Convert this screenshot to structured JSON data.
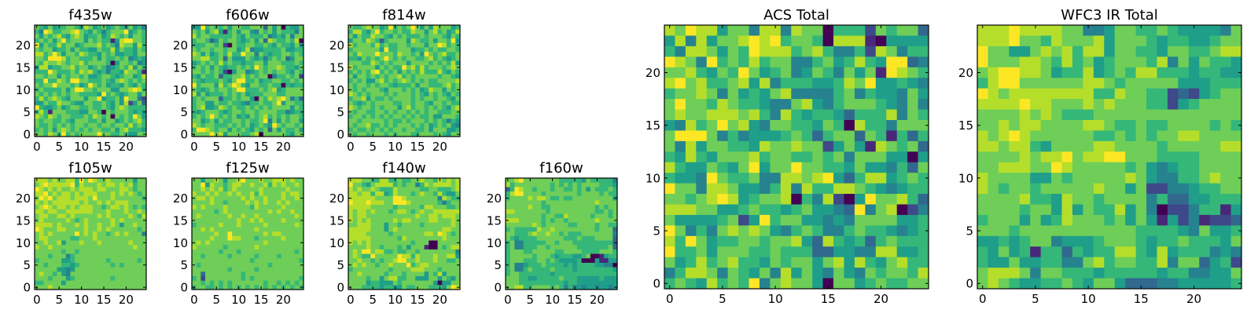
{
  "chart_data": [
    {
      "type": "heatmap",
      "title": "f435w",
      "colormap": "viridis",
      "xlim": [
        -0.5,
        24.5
      ],
      "ylim": [
        -0.5,
        24.5
      ],
      "xticks": [
        "0",
        "5",
        "10",
        "15",
        "20"
      ],
      "yticks": [
        "0",
        "5",
        "10",
        "15",
        "20"
      ],
      "rows_top_to_bottom_level0to9": [
        "7657566776587567567657564",
        "6498667789765764677795676",
        "7576786578756675687675776",
        "6767579677757676615899776",
        "9576686775677786764877586",
        "7677566757665576685766576",
        "8867975776876657675566577",
        "7769998677666757667674565",
        "7687787677867777605776745",
        "5885667786775676456768576",
        "6669766676878656466587761",
        "7767757677675567765677568",
        "6696687699776667657876767",
        "7677977767569767566576576",
        "6766667579977677755778986",
        "7676767677666659676567757",
        "6867876577757795667597742",
        "5576687765577667657582573",
        "9655675677667667657876666",
        "6861777666557760767776565",
        "8768767766676876707676975",
        "7677667657776675775676786",
        "7667676767767767767768676",
        "6767578767676776675786665",
        "7768769676777797766765577"
      ]
    },
    {
      "type": "heatmap",
      "title": "f606w",
      "colormap": "viridis",
      "xlim": [
        -0.5,
        24.5
      ],
      "ylim": [
        -0.5,
        24.5
      ],
      "xticks": [
        "0",
        "5",
        "10",
        "15",
        "20"
      ],
      "yticks": [
        "0",
        "5",
        "10",
        "15",
        "20"
      ],
      "rows_top_to_bottom_level0to9": [
        "5596766757766777375706557",
        "7675785167577547675766647",
        "8677666667657666745657477",
        "6776357677656757387667680",
        "6667767207667766765766575",
        "7677677677568455666675566",
        "8757567686697747656677676",
        "7788667375557656467673577",
        "5676768676656677577766676",
        "6767576566767697677876657",
        "7767676205774567676776576",
        "6576673667786767704667672",
        "7656667657996675667766767",
        "9677758679865776676606566",
        "7656767767996667678567777",
        "8575666767675666777667777",
        "6767773667677507687897463",
        "6775576676654667667957766",
        "6785568767667676767777576",
        "6567776567767767777664566",
        "6767976767565767867676776",
        "7756757667767667947576775",
        "8767766676767567659767767",
        "6998767757676576737576675",
        "7777978577766780777776577"
      ]
    },
    {
      "type": "heatmap",
      "title": "f814w",
      "colormap": "viridis",
      "xlim": [
        -0.5,
        24.5
      ],
      "ylim": [
        -0.5,
        24.5
      ],
      "xticks": [
        "0",
        "5",
        "10",
        "15",
        "20"
      ],
      "yticks": [
        "0",
        "5",
        "10",
        "15",
        "20"
      ],
      "rows_top_to_bottom_level0to9": [
        "7667877569676797575877756",
        "6886579677676687757867568",
        "7576687765767666767776576",
        "5776876367777587667577695",
        "8677768676677677757798676",
        "6777777596677756676766776",
        "7687779777687767597678667",
        "6657676797676776678676567",
        "7776687676777577776767685",
        "8677775767669786867776787",
        "6767689676757676866686576",
        "7577676767786767777767765",
        "6767557867678767676677778",
        "7677676776566675776667867",
        "7676777657776767568775767",
        "8767677767677767657676576",
        "6778576676777767677677657",
        "7656767777667767765776766",
        "8767767677757867767676578",
        "7677667767677676767766677",
        "6776767676776767667557776",
        "7767777767667677767676465",
        "7677866767677767675676754",
        "6766767676776776675777556",
        "7677677767677766777676577"
      ]
    },
    {
      "type": "heatmap",
      "title": "f105w",
      "colormap": "viridis",
      "xlim": [
        -0.5,
        24.5
      ],
      "ylim": [
        -0.5,
        24.5
      ],
      "xticks": [
        "0",
        "5",
        "10",
        "15",
        "20"
      ],
      "yticks": [
        "0",
        "5",
        "10",
        "15",
        "20"
      ],
      "rows_top_to_bottom_level0to9": [
        "8887877886979877877777577",
        "7898888896877787887878677",
        "9878787787888788777887677",
        "8897878878788877787878767",
        "7989788878887977787777776",
        "8787888888787787878887777",
        "7898788787888776788787676",
        "8878877888888777877787787",
        "7887788787777787877778768",
        "7877777876787777787877777",
        "8888787778787787787577877",
        "9877788777787787877777767",
        "7878777779787877678787774",
        "7887777766777877777777777",
        "7787785777877787777778777",
        "8778777777777777777777877",
        "7777776776777777777777777",
        "7776777467777777777777777",
        "6777775567777777677777767",
        "7767776656777777767677777",
        "7777755457777777777777777",
        "7877675477777777777777777",
        "7776777567777777767777777",
        "6677775777777777777777777",
        "7778777777777777777777777"
      ]
    },
    {
      "type": "heatmap",
      "title": "f125w",
      "colormap": "viridis",
      "xlim": [
        -0.5,
        24.5
      ],
      "ylim": [
        -0.5,
        24.5
      ],
      "xticks": [
        "0",
        "5",
        "10",
        "15",
        "20"
      ],
      "yticks": [
        "0",
        "5",
        "10",
        "15",
        "20"
      ],
      "rows_top_to_bottom_level0to9": [
        "7757787577897778778887877",
        "7795877678877877868787787",
        "7787878678777778777778777",
        "8778787787877868777787887",
        "7887877777787877877787787",
        "7777877677778787877878777",
        "8787777877777687777787777",
        "7777767877777777787877877",
        "7877777787787787777777787",
        "7777777777877878777787777",
        "6777778777877777877777787",
        "7787877777777787777777777",
        "7777787797777777878877777",
        "7777877798877767777787777",
        "7878777777777777877777777",
        "8777777677777787777777777",
        "7777776777677777777777767",
        "7767777767777767777677777",
        "7777777777777677777777776",
        "7677777777777777767777777",
        "7777777767777767777777777",
        "7737777777767777777777777",
        "6727777777767677777777776",
        "7767676767777777677676767",
        "6776676767676767676767676"
      ]
    },
    {
      "type": "heatmap",
      "title": "f140w",
      "colormap": "viridis",
      "xlim": [
        -0.5,
        24.5
      ],
      "ylim": [
        -0.5,
        24.5
      ],
      "xticks": [
        "0",
        "5",
        "10",
        "15",
        "20"
      ],
      "yticks": [
        "0",
        "5",
        "10",
        "15",
        "20"
      ],
      "rows_top_to_bottom_level0to9": [
        "8887766886676677877687878",
        "9776578888676774687888878",
        "8787787666877777667766678",
        "8878868856877767877686557",
        "8888887777998777777748766",
        "9888988877999877777764677",
        "8888877777677777688777667",
        "8788787776788767877888888",
        "8788777777777778778878887",
        "8787877777878877778877787",
        "7788877757767777677777787",
        "8888877757877777777778877",
        "8888777776777777788798767",
        "8888877777768777777778777",
        "8787877777777767770077777",
        "7777877677767577710076788",
        "7879978866766776777777774",
        "7876697777798868777877885",
        "7787767677899778777877667",
        "7878776778777967887777777",
        "6777777776777788877767777",
        "7787777767776777757685777",
        "7777677578866775557757657",
        "7777566555767777777505577",
        "7776666566557667776665798"
      ]
    },
    {
      "type": "heatmap",
      "title": "f160w",
      "colormap": "viridis",
      "xlim": [
        -0.5,
        24.5
      ],
      "ylim": [
        -0.5,
        24.5
      ],
      "xticks": [
        "0",
        "5",
        "10",
        "15",
        "20"
      ],
      "yticks": [
        "0",
        "5",
        "10",
        "15",
        "20"
      ],
      "rows_top_to_bottom_level0to9": [
        "7789777777776666657666664",
        "8677777777676767677776665",
        "3698776777677667675766676",
        "6899777767777777677776766",
        "6777787887667667777777775",
        "7777777767777777777787777",
        "7777787766777777777767677",
        "8877777776777777777766767",
        "7777777767766877777677767",
        "8887777767677677777787777",
        "7777778767777766777767766",
        "6766666877877777777767773",
        "7766678778776766677777774",
        "7656666777777666766677773",
        "6744666667767776666666663",
        "6744666776777777666666673",
        "6777667777766777766667776",
        "6777776777656665567001566",
        "6777666776765555600051155",
        "6744566676666565666655440",
        "6744676666766665666666665",
        "6776666666566666666666666",
        "7776655666667666555556555",
        "7776666666666566555555555",
        "7788667777676464545545545"
      ]
    },
    {
      "type": "heatmap",
      "title": "ACS Total",
      "colormap": "viridis",
      "xlim": [
        -0.5,
        24.5
      ],
      "ylim": [
        -0.5,
        24.5
      ],
      "xticks": [
        "0",
        "5",
        "10",
        "15",
        "20"
      ],
      "yticks": [
        "0",
        "5",
        "10",
        "15",
        "20"
      ],
      "rows_top_to_bottom_level0to9": [
        "8798857748848770666276773",
        "5848577898967760888105555",
        "6488757698886786446287466",
        "9874967686774467568659934",
        "7786576975674576475719876",
        "8978667858466655687955654",
        "6778747565784444674655475",
        "7977687665447854677765474",
        "7877888786486566536668476",
        "5486797854776657608664777",
        "7999746455567636773761636",
        "7485776658778772575187673",
        "6586577786776676747775505",
        "8655765795779776657554637",
        "6554976674488789536885676",
        "9774887554684866887654566",
        "7767898567780648205977863",
        "8887755676656755439478024",
        "7555567259677554547777556",
        "9746478787546764467665456",
        "8697566776778538656367666",
        "9667577766766633554488556",
        "7568678665767757858657866",
        "4688747657485754754767768",
        "6765867694787750775676677"
      ]
    },
    {
      "type": "heatmap",
      "title": "WFC3 IR Total",
      "colormap": "viridis",
      "xlim": [
        -0.5,
        24.5
      ],
      "ylim": [
        -0.5,
        24.5
      ],
      "xticks": [
        "0",
        "5",
        "10",
        "15",
        "20"
      ],
      "yticks": [
        "0",
        "5",
        "10",
        "15",
        "20"
      ],
      "rows_top_to_bottom_level0to9": [
        "8889888877445776676555547",
        "8889776877785777656655677",
        "9775578786885776657766788",
        "9777887686756777684757665",
        "7899887566856768866656655",
        "6899777777887677777555666",
        "9878888888866877662325677",
        "8888988777878777662567777",
        "7777878766677777777777777",
        "7787887777887667667777676",
        "8789877777766767677887777",
        "8878865777788777767777788",
        "7777878897889977766667777",
        "7788877987777767545667777",
        "8777755767777787544667877",
        "8767767777787757224456677",
        "7777866587767777463355666",
        "7777677585766857402246615",
        "6777575687776757515241223",
        "7776777777777776666547556",
        "5565677455567776566766657",
        "6575616636566886585666454",
        "6557556644786776684773562",
        "7888747766656666656644557",
        "7876556676577533344555556"
      ]
    }
  ],
  "colors": {
    "viridis_levels": [
      "#440154",
      "#482878",
      "#3e4989",
      "#31688e",
      "#26828e",
      "#1f9e89",
      "#35b779",
      "#6ece58",
      "#b5de2b",
      "#fde725"
    ],
    "axis": "#000000"
  }
}
